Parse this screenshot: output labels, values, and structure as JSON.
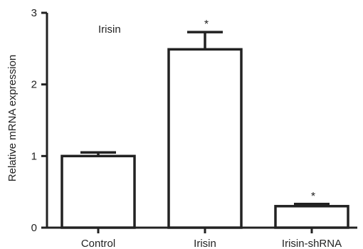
{
  "chart_data": {
    "type": "bar",
    "title": "Irisin",
    "ylabel": "Relative mRNA expression",
    "xlabel": "",
    "categories": [
      "Control",
      "Irisin",
      "Irisin-shRNA"
    ],
    "values": [
      1.0,
      2.49,
      0.3
    ],
    "errors": [
      0.05,
      0.24,
      0.03
    ],
    "significance": [
      "",
      "*",
      "*"
    ],
    "ylim": [
      0,
      3
    ],
    "yticks": [
      0,
      1,
      2,
      3
    ],
    "grid": false,
    "colors": {
      "bar_fill": "#ffffff",
      "stroke": "#222222"
    }
  }
}
